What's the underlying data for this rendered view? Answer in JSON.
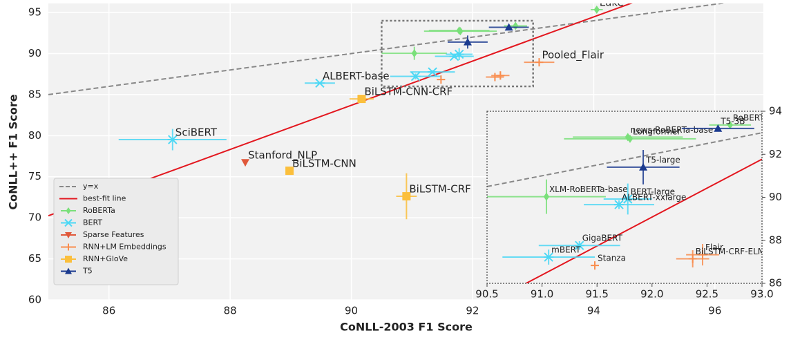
{
  "chart_data": {
    "type": "scatter",
    "x_label": "CoNLL-2003 F1 Score",
    "y_label": "CoNLL++ F1 Score",
    "xlim": [
      85,
      96.8
    ],
    "ylim": [
      60,
      96.1
    ],
    "xticks": [
      86,
      88,
      90,
      92,
      94,
      96
    ],
    "yticks": [
      60,
      65,
      70,
      75,
      80,
      85,
      90,
      95
    ],
    "grid": true,
    "legend": "lower left",
    "reference_lines": [
      {
        "name": "y=x",
        "color": "#888888",
        "slope": 1,
        "intercept": 0,
        "style": "dashed"
      },
      {
        "name": "best-fit line",
        "color": "#e3171f",
        "slope": 2.69,
        "intercept": -158.4,
        "style": "solid"
      }
    ],
    "inset": {
      "xlim": [
        90.5,
        93.0
      ],
      "ylim": [
        86,
        94
      ],
      "xticks": [
        90.5,
        {
          "value": 91,
          "label": "91.0"
        },
        91.5,
        {
          "value": 92,
          "label": "92.0"
        },
        92.5,
        {
          "value": 93,
          "label": "93.0"
        }
      ],
      "yticks": [
        86,
        88,
        90,
        92,
        94
      ]
    },
    "series": [
      {
        "name": "RoBERTa",
        "color": "#7ae07a",
        "marker": "diamond",
        "labels": [
          "Luke",
          "RoBERTa-large",
          "news-RoBERTa-base",
          "Longformer",
          "XLM-RoBERTa-base"
        ],
        "x": [
          94.05,
          92.71,
          91.78,
          91.8,
          91.04
        ],
        "values": [
          95.34,
          93.36,
          92.8,
          92.72,
          90.03
        ],
        "x_err": [
          0.1,
          0.19,
          0.5,
          0.6,
          0.54
        ],
        "y_err": [
          0.1,
          0.1,
          0.1,
          0.1,
          0.8
        ]
      },
      {
        "name": "BERT",
        "color": "#4dd8f5",
        "marker": "x",
        "labels": [
          "SciBERT",
          "ALBERT-base",
          "BERT-large",
          "ALBERT-xxlarge",
          "GigaBERT",
          "mBERT"
        ],
        "x": [
          87.05,
          89.48,
          91.78,
          91.7,
          91.34,
          91.06
        ],
        "values": [
          79.52,
          86.4,
          89.92,
          89.66,
          87.76,
          87.22
        ],
        "x_err": [
          0.89,
          0.25,
          0.22,
          0.32,
          0.37,
          0.42
        ],
        "y_err": [
          1.3,
          0.15,
          0.72,
          0.2,
          0.2,
          0.35
        ]
      },
      {
        "name": "Sparse Features",
        "color": "#e0583a",
        "marker": "triangle-down",
        "labels": [
          "Stanford_NLP"
        ],
        "x": [
          88.25
        ],
        "values": [
          76.74
        ],
        "x_err": [
          0
        ],
        "y_err": [
          0
        ]
      },
      {
        "name": "RNN+LM Embeddings",
        "color": "#f98d4e",
        "marker": "plus",
        "labels": [
          "Pooled_Flair",
          "Flair",
          "BiLSTM-CRF-ELMo",
          "Stanza"
        ],
        "x": [
          93.1,
          92.46,
          92.37,
          91.48
        ],
        "values": [
          88.94,
          87.33,
          87.14,
          86.83
        ],
        "x_err": [
          0.25,
          0.15,
          0.15,
          0
        ],
        "y_err": [
          0.15,
          0.5,
          0.4,
          0
        ]
      },
      {
        "name": "RNN+GloVe",
        "color": "#fbbf3c",
        "marker": "square",
        "labels": [
          "BiLSTM-CNN-CRF",
          "BiLSTM-CNN",
          "BiLSTM-CRF"
        ],
        "x": [
          90.17,
          88.98,
          90.91
        ],
        "values": [
          84.48,
          75.73,
          72.62
        ],
        "x_err": [
          0.2,
          0.05,
          0.17
        ],
        "y_err": [
          0.1,
          0.3,
          2.8
        ]
      },
      {
        "name": "T5",
        "color": "#1a3a8f",
        "marker": "triangle-up",
        "labels": [
          "T5-3B",
          "T5-large"
        ],
        "x": [
          92.6,
          91.92
        ],
        "values": [
          93.2,
          91.4
        ],
        "x_err": [
          0.33,
          0.33
        ],
        "y_err": [
          0.1,
          0.8
        ]
      }
    ]
  }
}
